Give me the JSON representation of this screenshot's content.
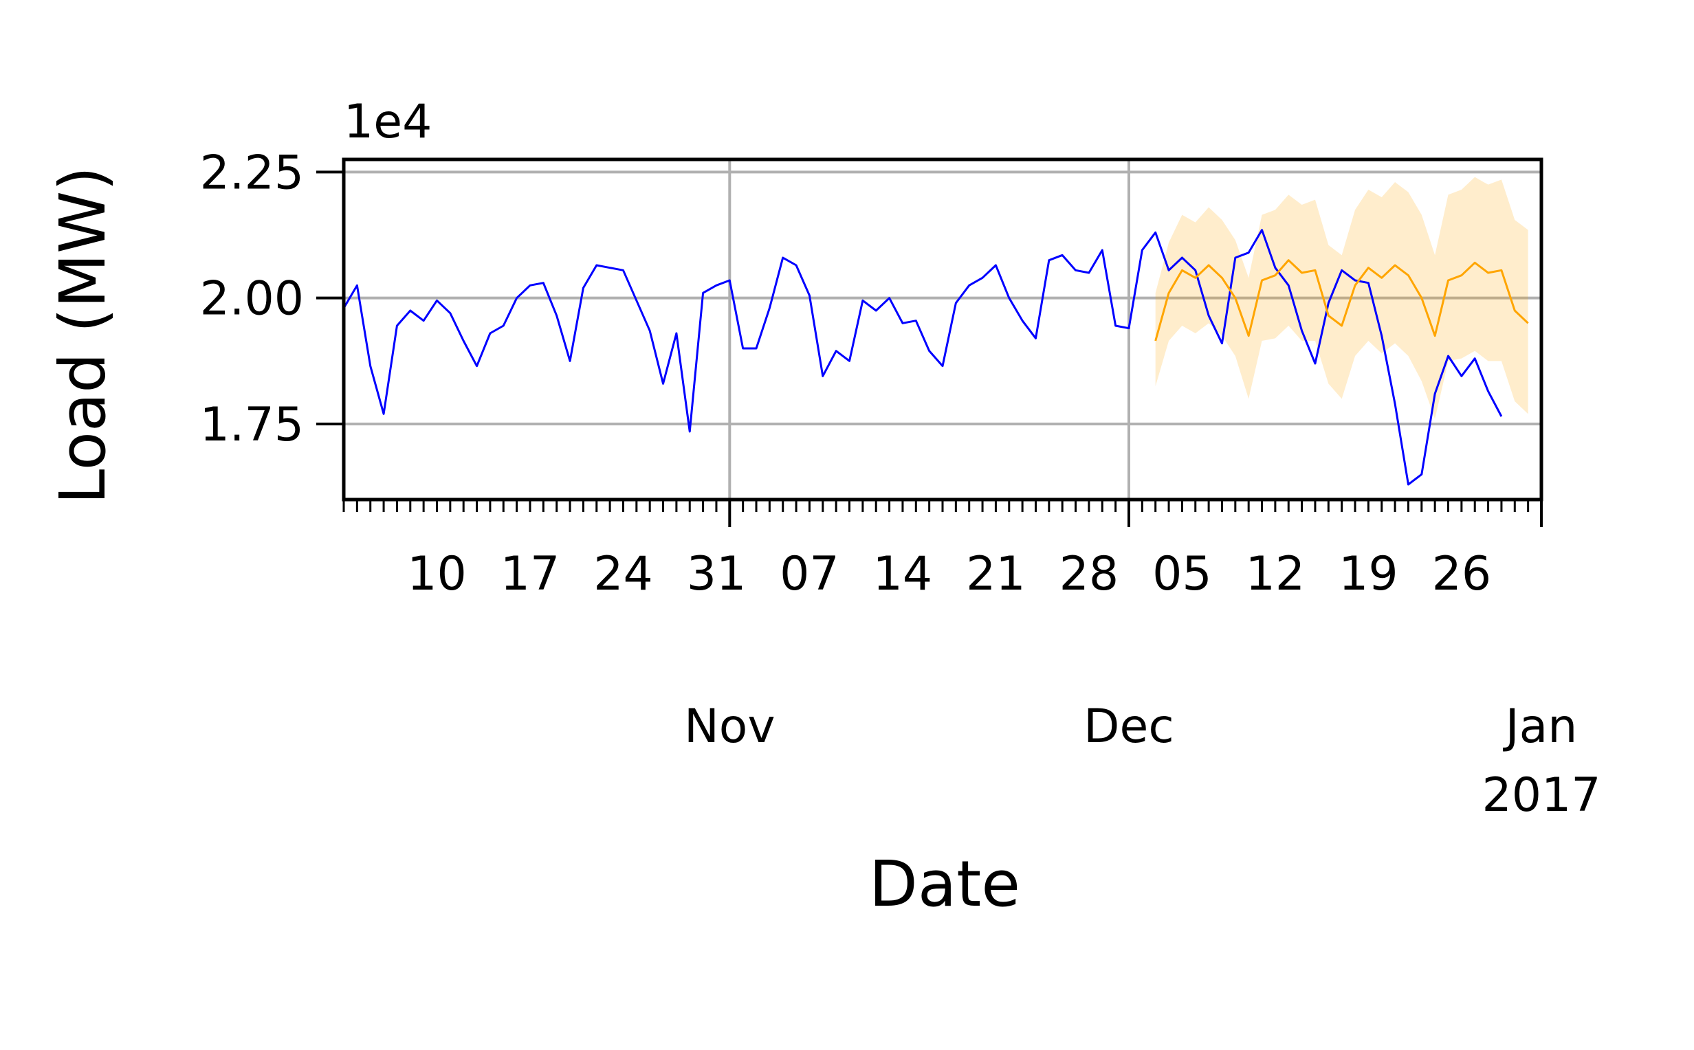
{
  "chart_data": {
    "type": "line",
    "xlabel": "Date",
    "ylabel": "Load (MW)",
    "y_offset_label": "1e4",
    "y_scale_factor": 10000,
    "ylim": [
      16000,
      22750
    ],
    "yticks": [
      17500,
      20000,
      22500
    ],
    "ytick_labels": [
      "1.75",
      "2.00",
      "2.25"
    ],
    "xlim": [
      "2016-10-03",
      "2017-01-01"
    ],
    "x_day_ticks": [
      {
        "date": "2016-10-10",
        "label": "10"
      },
      {
        "date": "2016-10-17",
        "label": "17"
      },
      {
        "date": "2016-10-24",
        "label": "24"
      },
      {
        "date": "2016-10-31",
        "label": "31"
      },
      {
        "date": "2016-11-07",
        "label": "07"
      },
      {
        "date": "2016-11-14",
        "label": "14"
      },
      {
        "date": "2016-11-21",
        "label": "21"
      },
      {
        "date": "2016-11-28",
        "label": "28"
      },
      {
        "date": "2016-12-05",
        "label": "05"
      },
      {
        "date": "2016-12-12",
        "label": "12"
      },
      {
        "date": "2016-12-19",
        "label": "19"
      },
      {
        "date": "2016-12-26",
        "label": "26"
      }
    ],
    "x_month_ticks": [
      {
        "date": "2016-11-01",
        "label": "Nov"
      },
      {
        "date": "2016-12-01",
        "label": "Dec"
      },
      {
        "date": "2017-01-01",
        "label": "Jan\n2017"
      }
    ],
    "grid": true,
    "series": [
      {
        "color": "#0000ff",
        "x_start": "2016-10-03",
        "values": [
          19800,
          20250,
          18650,
          17700,
          19450,
          19750,
          19550,
          19950,
          19700,
          19150,
          18650,
          19300,
          19450,
          20000,
          20250,
          20300,
          19650,
          18750,
          20200,
          20650,
          20600,
          20550,
          19950,
          19350,
          18300,
          19300,
          17350,
          20100,
          20250,
          20350,
          19000,
          19000,
          19800,
          20800,
          20650,
          20050,
          18450,
          18950,
          18750,
          19950,
          19750,
          20000,
          19500,
          19550,
          18950,
          18650,
          19900,
          20250,
          20400,
          20650,
          20000,
          19550,
          19200,
          20750,
          20850,
          20550,
          20500,
          20950,
          19450,
          19400,
          20950,
          21300,
          20550,
          20800,
          20550,
          19650,
          19100,
          20800,
          20900,
          21350,
          20600,
          20250,
          19350,
          18700,
          19900,
          20550,
          20350,
          20300,
          19250,
          17900,
          16300,
          16500,
          18100,
          18850,
          18450,
          18800,
          18150,
          17650
        ]
      },
      {
        "color": "#ffa500",
        "x_start": "2016-12-03",
        "values": [
          19150,
          20100,
          20550,
          20400,
          20650,
          20400,
          20000,
          19250,
          20350,
          20450,
          20750,
          20500,
          20550,
          19650,
          19450,
          20250,
          20600,
          20400,
          20650,
          20450,
          20000,
          19250,
          20350,
          20450,
          20700,
          20500,
          20550,
          19750,
          19500
        ]
      }
    ],
    "band": {
      "color": "#ffa500",
      "x_start": "2016-12-03",
      "upper": [
        20100,
        21100,
        21650,
        21500,
        21800,
        21550,
        21150,
        20400,
        21650,
        21750,
        22050,
        21850,
        21950,
        21050,
        20850,
        21750,
        22150,
        22000,
        22300,
        22100,
        21650,
        20850,
        22050,
        22150,
        22400,
        22250,
        22350,
        21550,
        21350
      ],
      "lower": [
        18250,
        19150,
        19450,
        19300,
        19500,
        19250,
        18850,
        18000,
        19150,
        19200,
        19450,
        19150,
        19150,
        18300,
        18000,
        18850,
        19150,
        18900,
        19100,
        18850,
        18350,
        17600,
        18750,
        18800,
        18950,
        18750,
        18750,
        17950,
        17700
      ]
    }
  }
}
